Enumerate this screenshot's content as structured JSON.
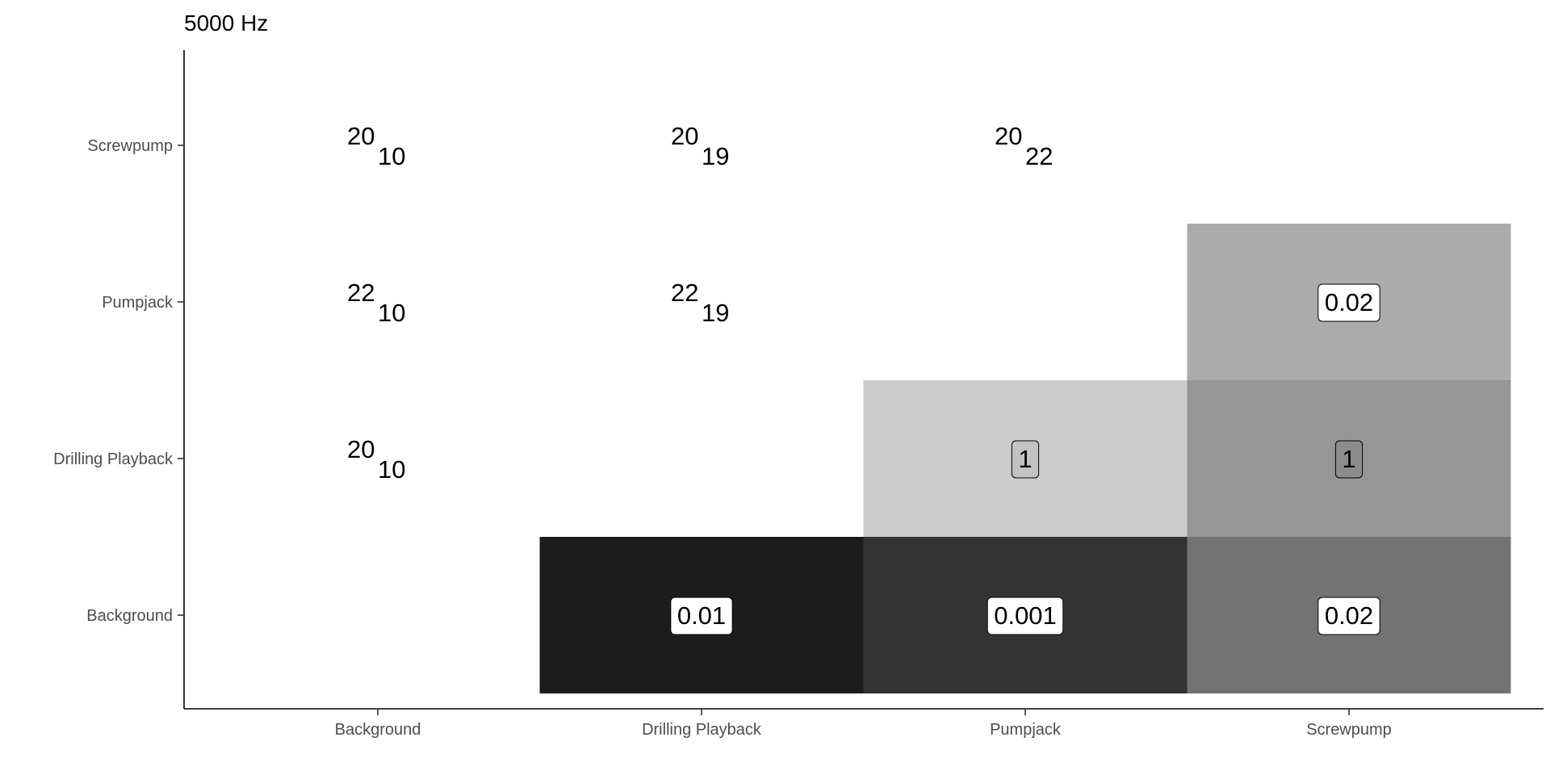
{
  "chart_data": {
    "type": "heatmap",
    "title": "5000 Hz",
    "xlabel": "",
    "ylabel": "",
    "x_categories": [
      "Background",
      "Drilling Playback",
      "Pumpjack",
      "Screwpump"
    ],
    "y_categories": [
      "Background",
      "Drilling Playback",
      "Pumpjack",
      "Screwpump"
    ],
    "grid": false,
    "legend": "none",
    "cells": [
      {
        "x": "Drilling Playback",
        "y": "Background",
        "label": "0.01",
        "fill": "#1c1c1c",
        "label_bg": "#ffffff"
      },
      {
        "x": "Pumpjack",
        "y": "Background",
        "label": "0.001",
        "fill": "#333333",
        "label_bg": "#ffffff"
      },
      {
        "x": "Screwpump",
        "y": "Background",
        "label": "0.02",
        "fill": "#737373",
        "label_bg": "#ffffff"
      },
      {
        "x": "Pumpjack",
        "y": "Drilling Playback",
        "label": "1",
        "fill": "#cccccc",
        "label_bg": "#c2c2c2"
      },
      {
        "x": "Screwpump",
        "y": "Drilling Playback",
        "label": "1",
        "fill": "#969696",
        "label_bg": "#8c8c8c"
      },
      {
        "x": "Screwpump",
        "y": "Pumpjack",
        "label": "0.02",
        "fill": "#ababab",
        "label_bg": "#ffffff"
      }
    ],
    "counts": [
      {
        "x": "Background",
        "y": "Drilling Playback",
        "main": "20",
        "sub": "10"
      },
      {
        "x": "Background",
        "y": "Pumpjack",
        "main": "22",
        "sub": "10"
      },
      {
        "x": "Drilling Playback",
        "y": "Pumpjack",
        "main": "22",
        "sub": "19"
      },
      {
        "x": "Background",
        "y": "Screwpump",
        "main": "20",
        "sub": "10"
      },
      {
        "x": "Drilling Playback",
        "y": "Screwpump",
        "main": "20",
        "sub": "19"
      },
      {
        "x": "Pumpjack",
        "y": "Screwpump",
        "main": "20",
        "sub": "22"
      }
    ]
  }
}
